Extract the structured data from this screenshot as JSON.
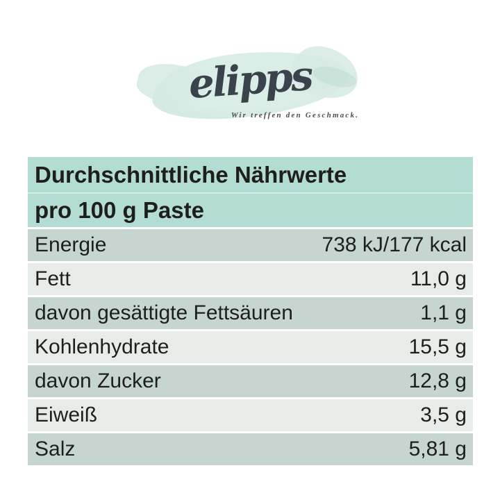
{
  "logo": {
    "wordmark": "elipps",
    "tagline": "Wir treffen den Geschmack.",
    "wordmark_color": "#3a434b",
    "splash_color": "#d7eae3"
  },
  "table": {
    "header": {
      "line1": "Durchschnittliche Nährwerte",
      "line2": "pro 100 g Paste",
      "bg": "#b3dcd2"
    },
    "row_colors": {
      "dark": "#c6d5cf",
      "light": "#e7ece9"
    },
    "rows": [
      {
        "label": "Energie",
        "value": "738 kJ/177 kcal",
        "shade": "dark"
      },
      {
        "label": "Fett",
        "value": "11,0 g",
        "shade": "light"
      },
      {
        "label": "davon gesättigte Fettsäuren",
        "value": "1,1 g",
        "shade": "dark"
      },
      {
        "label": "Kohlenhydrate",
        "value": "15,5 g",
        "shade": "light"
      },
      {
        "label": "davon Zucker",
        "value": "12,8 g",
        "shade": "dark"
      },
      {
        "label": "Eiweiß",
        "value": "3,5 g",
        "shade": "light"
      },
      {
        "label": "Salz",
        "value": "5,81 g",
        "shade": "dark"
      }
    ]
  }
}
